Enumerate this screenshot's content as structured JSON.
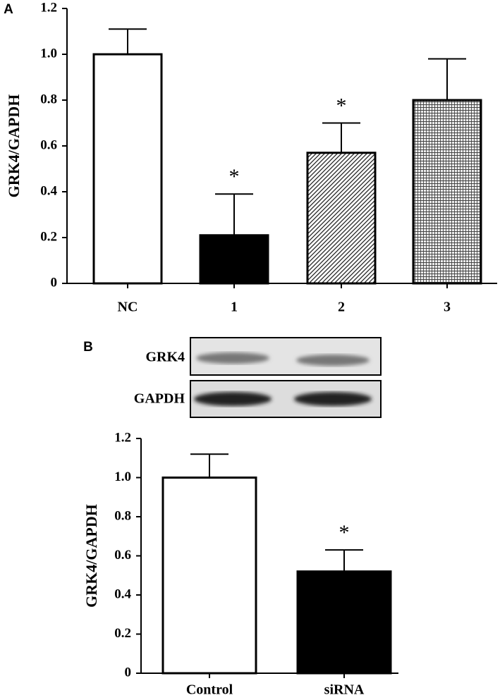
{
  "chart_data": [
    {
      "type": "bar",
      "panel_label": "A",
      "y_label": "GRK4/GAPDH",
      "categories": [
        "NC",
        "1",
        "2",
        "3"
      ],
      "values": [
        1.0,
        0.21,
        0.57,
        0.8
      ],
      "errors": [
        0.11,
        0.18,
        0.13,
        0.18
      ],
      "fills": [
        "white",
        "black",
        "diagonal",
        "crosshatch"
      ],
      "markers": [
        null,
        "*",
        "*",
        null
      ],
      "ylim": [
        0,
        1.2
      ],
      "yticks": [
        0,
        0.2,
        0.4,
        0.6,
        0.8,
        {
          "value": 1,
          "label": "1.0"
        },
        1.2
      ]
    },
    {
      "type": "bar",
      "panel_label": "B",
      "y_label": "GRK4/GAPDH",
      "blot_labels": [
        "GRK4",
        "GAPDH"
      ],
      "categories": [
        "Control",
        "siRNA"
      ],
      "values": [
        1.0,
        0.52
      ],
      "errors": [
        0.12,
        0.11
      ],
      "fills": [
        "white",
        "black"
      ],
      "markers": [
        null,
        "*"
      ],
      "ylim": [
        0,
        1.2
      ],
      "yticks": [
        0,
        0.2,
        0.4,
        0.6,
        0.8,
        {
          "value": 1,
          "label": "1.0"
        },
        1.2
      ]
    }
  ]
}
